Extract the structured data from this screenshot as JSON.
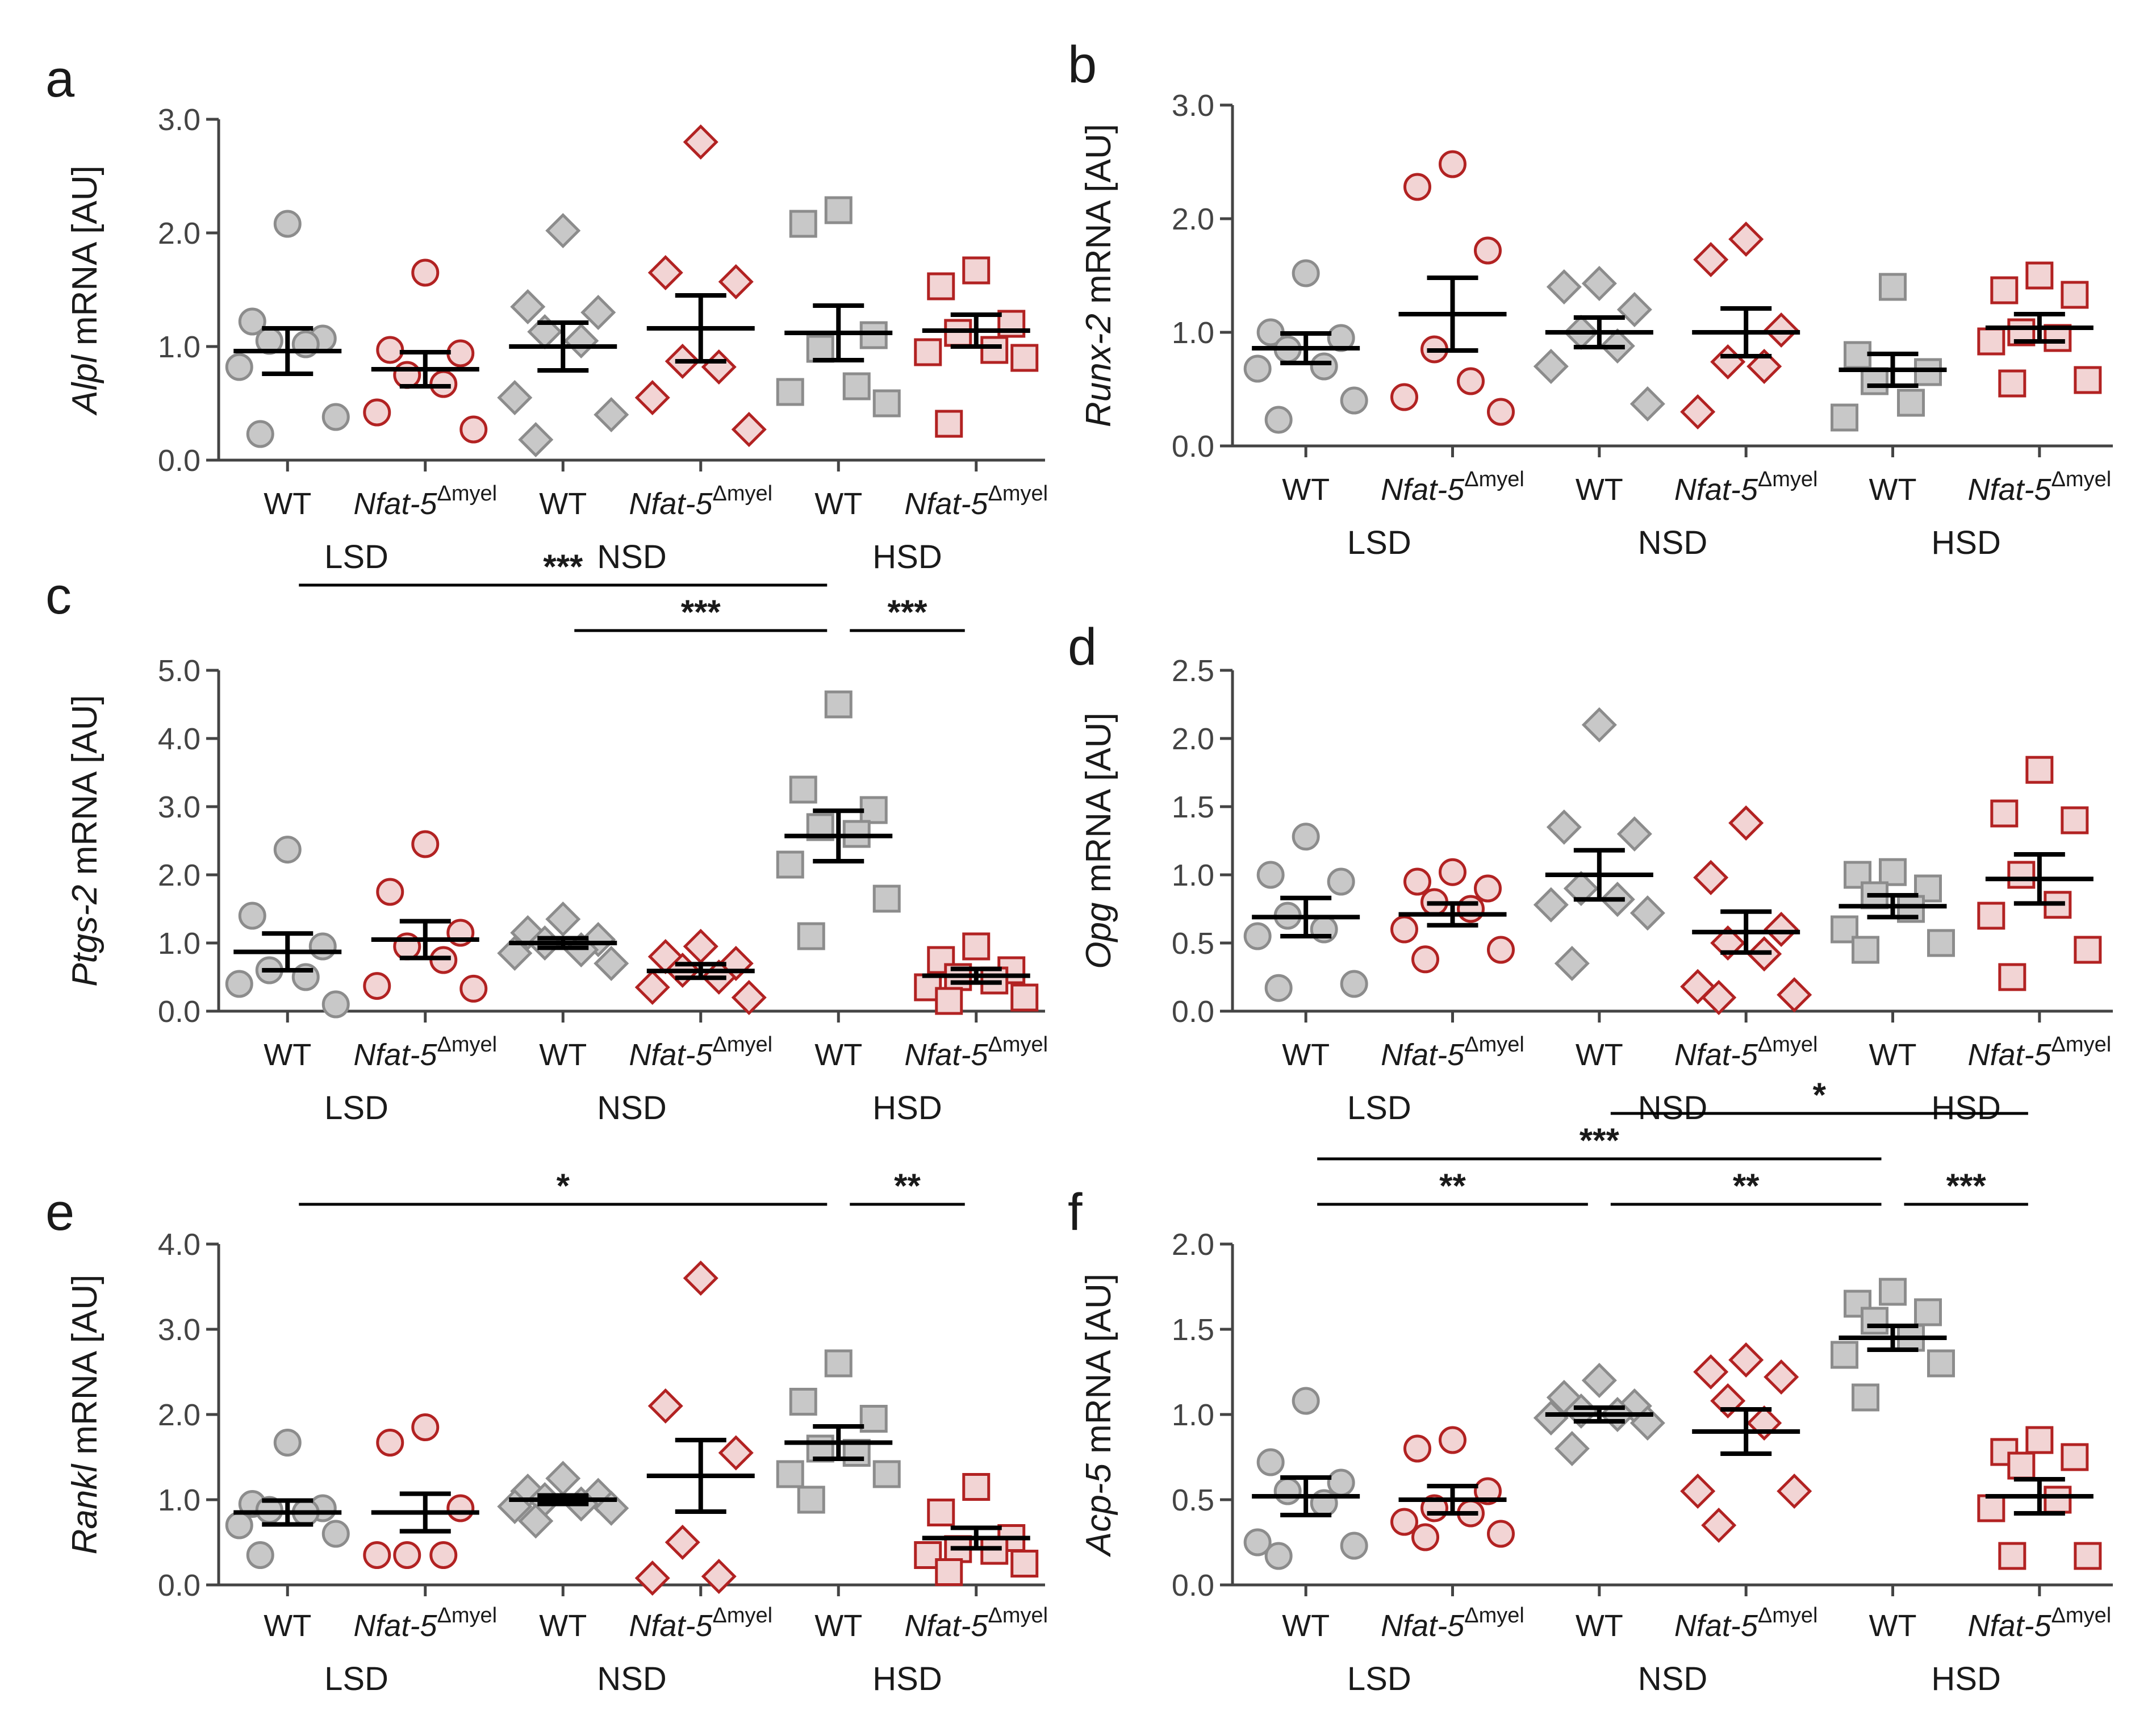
{
  "colors": {
    "wt_fill": "#c8c8c8",
    "wt_stroke": "#8c8c8c",
    "ko_fill": "#f2d4d4",
    "ko_stroke": "#b22222"
  },
  "chart_data": [
    {
      "panel": "a",
      "type": "scatter",
      "ylabel_gene": "Alpl",
      "ylabel_rest": " mRNA [AU]",
      "ylim": [
        0,
        3
      ],
      "yticks": [
        0,
        1,
        2,
        3
      ],
      "tick_labels": [
        "0.0",
        "1.0",
        "2.0",
        "3.0"
      ],
      "categories": [
        {
          "label": "WT",
          "italic": false,
          "sup": "",
          "group": "LSD",
          "marker": "circle",
          "genotype": "wt",
          "values": [
            2.08,
            1.22,
            1.07,
            1.05,
            1.02,
            0.82,
            0.38,
            0.23
          ],
          "mean": 0.96,
          "sem": 0.2
        },
        {
          "label": "Nfat-5",
          "italic": true,
          "sup": "Δmyel",
          "group": "LSD",
          "marker": "circle",
          "genotype": "ko",
          "values": [
            1.65,
            0.97,
            0.94,
            0.75,
            0.67,
            0.42,
            0.27
          ],
          "mean": 0.8,
          "sem": 0.15
        },
        {
          "label": "WT",
          "italic": false,
          "sup": "",
          "group": "NSD",
          "marker": "diamond",
          "genotype": "wt",
          "values": [
            2.02,
            1.35,
            1.3,
            1.13,
            1.05,
            0.55,
            0.4,
            0.18
          ],
          "mean": 1.0,
          "sem": 0.21
        },
        {
          "label": "Nfat-5",
          "italic": true,
          "sup": "Δmyel",
          "group": "NSD",
          "marker": "diamond",
          "genotype": "ko",
          "values": [
            2.8,
            1.65,
            1.57,
            0.87,
            0.82,
            0.55,
            0.27
          ],
          "mean": 1.16,
          "sem": 0.29
        },
        {
          "label": "WT",
          "italic": false,
          "sup": "",
          "group": "HSD",
          "marker": "square",
          "genotype": "wt",
          "values": [
            2.2,
            2.08,
            1.1,
            0.98,
            0.65,
            0.6,
            0.5
          ],
          "mean": 1.12,
          "sem": 0.24
        },
        {
          "label": "Nfat-5",
          "italic": true,
          "sup": "Δmyel",
          "group": "HSD",
          "marker": "square",
          "genotype": "ko",
          "values": [
            1.67,
            1.53,
            1.2,
            1.12,
            0.97,
            0.95,
            0.9,
            0.32
          ],
          "mean": 1.14,
          "sem": 0.14
        }
      ],
      "groups": [
        "LSD",
        "NSD",
        "HSD"
      ],
      "significance": []
    },
    {
      "panel": "b",
      "type": "scatter",
      "ylabel_gene": "Runx-2",
      "ylabel_rest": " mRNA [AU]",
      "ylim": [
        0,
        3
      ],
      "yticks": [
        0,
        1,
        2,
        3
      ],
      "tick_labels": [
        "0.0",
        "1.0",
        "2.0",
        "3.0"
      ],
      "categories": [
        {
          "label": "WT",
          "italic": false,
          "sup": "",
          "group": "LSD",
          "marker": "circle",
          "genotype": "wt",
          "values": [
            1.52,
            1.0,
            0.95,
            0.85,
            0.7,
            0.68,
            0.4,
            0.23
          ],
          "mean": 0.86,
          "sem": 0.13
        },
        {
          "label": "Nfat-5",
          "italic": true,
          "sup": "Δmyel",
          "group": "LSD",
          "marker": "circle",
          "genotype": "ko",
          "values": [
            2.48,
            2.28,
            1.72,
            0.85,
            0.57,
            0.43,
            0.3
          ],
          "mean": 1.16,
          "sem": 0.32
        },
        {
          "label": "WT",
          "italic": false,
          "sup": "",
          "group": "NSD",
          "marker": "diamond",
          "genotype": "wt",
          "values": [
            1.43,
            1.4,
            1.2,
            1.0,
            0.88,
            0.7,
            0.37
          ],
          "mean": 1.0,
          "sem": 0.13
        },
        {
          "label": "Nfat-5",
          "italic": true,
          "sup": "Δmyel",
          "group": "NSD",
          "marker": "diamond",
          "genotype": "ko",
          "values": [
            1.82,
            1.64,
            1.02,
            0.74,
            0.7,
            0.3
          ],
          "mean": 1.0,
          "sem": 0.21
        },
        {
          "label": "WT",
          "italic": false,
          "sup": "",
          "group": "HSD",
          "marker": "square",
          "genotype": "wt",
          "values": [
            1.4,
            0.8,
            0.65,
            0.57,
            0.38,
            0.25
          ],
          "mean": 0.67,
          "sem": 0.14
        },
        {
          "label": "Nfat-5",
          "italic": true,
          "sup": "Δmyel",
          "group": "HSD",
          "marker": "square",
          "genotype": "ko",
          "values": [
            1.5,
            1.37,
            1.33,
            1.0,
            0.95,
            0.92,
            0.58,
            0.55
          ],
          "mean": 1.04,
          "sem": 0.12
        }
      ],
      "groups": [
        "LSD",
        "NSD",
        "HSD"
      ],
      "significance": []
    },
    {
      "panel": "c",
      "type": "scatter",
      "ylabel_gene": "Ptgs-2",
      "ylabel_rest": " mRNA [AU]",
      "ylim": [
        0,
        5
      ],
      "yticks": [
        0,
        1,
        2,
        3,
        4,
        5
      ],
      "tick_labels": [
        "0.0",
        "1.0",
        "2.0",
        "3.0",
        "4.0",
        "5.0"
      ],
      "categories": [
        {
          "label": "WT",
          "italic": false,
          "sup": "",
          "group": "LSD",
          "marker": "circle",
          "genotype": "wt",
          "values": [
            2.37,
            1.4,
            0.95,
            0.6,
            0.5,
            0.4,
            0.1
          ],
          "mean": 0.87,
          "sem": 0.27
        },
        {
          "label": "Nfat-5",
          "italic": true,
          "sup": "Δmyel",
          "group": "LSD",
          "marker": "circle",
          "genotype": "ko",
          "values": [
            2.45,
            1.75,
            1.15,
            0.95,
            0.75,
            0.37,
            0.33
          ],
          "mean": 1.05,
          "sem": 0.27
        },
        {
          "label": "WT",
          "italic": false,
          "sup": "",
          "group": "NSD",
          "marker": "diamond",
          "genotype": "wt",
          "values": [
            1.35,
            1.15,
            1.05,
            1.0,
            0.9,
            0.85,
            0.7
          ],
          "mean": 1.0,
          "sem": 0.07
        },
        {
          "label": "Nfat-5",
          "italic": true,
          "sup": "Δmyel",
          "group": "NSD",
          "marker": "diamond",
          "genotype": "ko",
          "values": [
            0.95,
            0.8,
            0.7,
            0.6,
            0.5,
            0.35,
            0.2
          ],
          "mean": 0.59,
          "sem": 0.1
        },
        {
          "label": "WT",
          "italic": false,
          "sup": "",
          "group": "HSD",
          "marker": "square",
          "genotype": "wt",
          "values": [
            4.5,
            3.25,
            2.95,
            2.7,
            2.6,
            2.15,
            1.65,
            1.1
          ],
          "mean": 2.57,
          "sem": 0.37
        },
        {
          "label": "Nfat-5",
          "italic": true,
          "sup": "Δmyel",
          "group": "HSD",
          "marker": "square",
          "genotype": "ko",
          "values": [
            0.95,
            0.75,
            0.6,
            0.5,
            0.45,
            0.35,
            0.2,
            0.15
          ],
          "mean": 0.52,
          "sem": 0.1
        }
      ],
      "groups": [
        "LSD",
        "NSD",
        "HSD"
      ],
      "significance": [
        {
          "from": 0,
          "to": 4,
          "label": "***",
          "level": 1
        },
        {
          "from": 2,
          "to": 4,
          "label": "***",
          "level": 0
        },
        {
          "from": 4,
          "to": 5,
          "label": "***",
          "level": 0
        }
      ]
    },
    {
      "panel": "d",
      "type": "scatter",
      "ylabel_gene": "Opg",
      "ylabel_rest": " mRNA [AU]",
      "ylim": [
        0,
        2.5
      ],
      "yticks": [
        0,
        0.5,
        1,
        1.5,
        2,
        2.5
      ],
      "tick_labels": [
        "0.0",
        "0.5",
        "1.0",
        "1.5",
        "2.0",
        "2.5"
      ],
      "categories": [
        {
          "label": "WT",
          "italic": false,
          "sup": "",
          "group": "LSD",
          "marker": "circle",
          "genotype": "wt",
          "values": [
            1.28,
            1.0,
            0.95,
            0.7,
            0.6,
            0.55,
            0.2,
            0.17
          ],
          "mean": 0.69,
          "sem": 0.14
        },
        {
          "label": "Nfat-5",
          "italic": true,
          "sup": "Δmyel",
          "group": "LSD",
          "marker": "circle",
          "genotype": "ko",
          "values": [
            1.02,
            0.95,
            0.9,
            0.8,
            0.75,
            0.6,
            0.45,
            0.38
          ],
          "mean": 0.71,
          "sem": 0.08
        },
        {
          "label": "WT",
          "italic": false,
          "sup": "",
          "group": "NSD",
          "marker": "diamond",
          "genotype": "wt",
          "values": [
            2.1,
            1.35,
            1.3,
            0.9,
            0.82,
            0.78,
            0.72,
            0.35
          ],
          "mean": 1.0,
          "sem": 0.18
        },
        {
          "label": "Nfat-5",
          "italic": true,
          "sup": "Δmyel",
          "group": "NSD",
          "marker": "diamond",
          "genotype": "ko",
          "values": [
            1.38,
            0.98,
            0.6,
            0.5,
            0.42,
            0.18,
            0.12,
            0.1
          ],
          "mean": 0.58,
          "sem": 0.15
        },
        {
          "label": "WT",
          "italic": false,
          "sup": "",
          "group": "HSD",
          "marker": "square",
          "genotype": "wt",
          "values": [
            1.02,
            1.0,
            0.9,
            0.85,
            0.75,
            0.6,
            0.5,
            0.45
          ],
          "mean": 0.77,
          "sem": 0.08
        },
        {
          "label": "Nfat-5",
          "italic": true,
          "sup": "Δmyel",
          "group": "HSD",
          "marker": "square",
          "genotype": "ko",
          "values": [
            1.77,
            1.45,
            1.4,
            1.0,
            0.78,
            0.7,
            0.45,
            0.25
          ],
          "mean": 0.97,
          "sem": 0.18
        }
      ],
      "groups": [
        "LSD",
        "NSD",
        "HSD"
      ],
      "significance": []
    },
    {
      "panel": "e",
      "type": "scatter",
      "ylabel_gene": "Rankl",
      "ylabel_rest": " mRNA [AU]",
      "ylim": [
        0,
        4
      ],
      "yticks": [
        0,
        1,
        2,
        3,
        4
      ],
      "tick_labels": [
        "0.0",
        "1.0",
        "2.0",
        "3.0",
        "4.0"
      ],
      "categories": [
        {
          "label": "WT",
          "italic": false,
          "sup": "",
          "group": "LSD",
          "marker": "circle",
          "genotype": "wt",
          "values": [
            1.67,
            0.95,
            0.9,
            0.88,
            0.85,
            0.7,
            0.6,
            0.35
          ],
          "mean": 0.85,
          "sem": 0.14
        },
        {
          "label": "Nfat-5",
          "italic": true,
          "sup": "Δmyel",
          "group": "LSD",
          "marker": "circle",
          "genotype": "ko",
          "values": [
            1.85,
            1.67,
            0.9,
            0.35,
            0.35,
            0.35
          ],
          "mean": 0.85,
          "sem": 0.22
        },
        {
          "label": "WT",
          "italic": false,
          "sup": "",
          "group": "NSD",
          "marker": "diamond",
          "genotype": "wt",
          "values": [
            1.25,
            1.1,
            1.05,
            1.0,
            0.95,
            0.92,
            0.9,
            0.75
          ],
          "mean": 1.0,
          "sem": 0.05
        },
        {
          "label": "Nfat-5",
          "italic": true,
          "sup": "Δmyel",
          "group": "NSD",
          "marker": "diamond",
          "genotype": "ko",
          "values": [
            3.6,
            2.1,
            1.55,
            0.5,
            0.1,
            0.08
          ],
          "mean": 1.28,
          "sem": 0.42
        },
        {
          "label": "WT",
          "italic": false,
          "sup": "",
          "group": "HSD",
          "marker": "square",
          "genotype": "wt",
          "values": [
            2.6,
            2.15,
            1.95,
            1.6,
            1.55,
            1.3,
            1.3,
            1.0
          ],
          "mean": 1.67,
          "sem": 0.19
        },
        {
          "label": "Nfat-5",
          "italic": true,
          "sup": "Δmyel",
          "group": "HSD",
          "marker": "square",
          "genotype": "ko",
          "values": [
            1.15,
            0.85,
            0.55,
            0.42,
            0.4,
            0.35,
            0.25,
            0.15
          ],
          "mean": 0.55,
          "sem": 0.12
        }
      ],
      "groups": [
        "LSD",
        "NSD",
        "HSD"
      ],
      "significance": [
        {
          "from": 0,
          "to": 4,
          "label": "*",
          "level": 0
        },
        {
          "from": 4,
          "to": 5,
          "label": "**",
          "level": 0
        }
      ]
    },
    {
      "panel": "f",
      "type": "scatter",
      "ylabel_gene": "Acp-5",
      "ylabel_rest": " mRNA [AU]",
      "ylim": [
        0,
        2
      ],
      "yticks": [
        0,
        0.5,
        1,
        1.5,
        2
      ],
      "tick_labels": [
        "0.0",
        "0.5",
        "1.0",
        "1.5",
        "2.0"
      ],
      "categories": [
        {
          "label": "WT",
          "italic": false,
          "sup": "",
          "group": "LSD",
          "marker": "circle",
          "genotype": "wt",
          "values": [
            1.08,
            0.72,
            0.6,
            0.55,
            0.48,
            0.25,
            0.23,
            0.17
          ],
          "mean": 0.52,
          "sem": 0.11
        },
        {
          "label": "Nfat-5",
          "italic": true,
          "sup": "Δmyel",
          "group": "LSD",
          "marker": "circle",
          "genotype": "ko",
          "values": [
            0.85,
            0.8,
            0.55,
            0.45,
            0.42,
            0.37,
            0.3,
            0.28
          ],
          "mean": 0.5,
          "sem": 0.08
        },
        {
          "label": "WT",
          "italic": false,
          "sup": "",
          "group": "NSD",
          "marker": "diamond",
          "genotype": "wt",
          "values": [
            1.2,
            1.1,
            1.05,
            1.02,
            1.0,
            0.98,
            0.95,
            0.8
          ],
          "mean": 1.0,
          "sem": 0.04
        },
        {
          "label": "Nfat-5",
          "italic": true,
          "sup": "Δmyel",
          "group": "NSD",
          "marker": "diamond",
          "genotype": "ko",
          "values": [
            1.32,
            1.25,
            1.22,
            1.08,
            0.95,
            0.55,
            0.55,
            0.35
          ],
          "mean": 0.9,
          "sem": 0.13
        },
        {
          "label": "WT",
          "italic": false,
          "sup": "",
          "group": "HSD",
          "marker": "square",
          "genotype": "wt",
          "values": [
            1.72,
            1.65,
            1.6,
            1.55,
            1.45,
            1.35,
            1.3,
            1.1
          ],
          "mean": 1.45,
          "sem": 0.07
        },
        {
          "label": "Nfat-5",
          "italic": true,
          "sup": "Δmyel",
          "group": "HSD",
          "marker": "square",
          "genotype": "ko",
          "values": [
            0.85,
            0.78,
            0.75,
            0.7,
            0.5,
            0.45,
            0.17,
            0.17
          ],
          "mean": 0.52,
          "sem": 0.1
        }
      ],
      "groups": [
        "LSD",
        "NSD",
        "HSD"
      ],
      "significance": [
        {
          "from": 2,
          "to": 5,
          "label": "*",
          "level": 2
        },
        {
          "from": 0,
          "to": 4,
          "label": "***",
          "level": 1
        },
        {
          "from": 0,
          "to": 2,
          "label": "**",
          "level": 0
        },
        {
          "from": 2,
          "to": 4,
          "label": "**",
          "level": 0
        },
        {
          "from": 4,
          "to": 5,
          "label": "***",
          "level": 0
        }
      ]
    }
  ]
}
